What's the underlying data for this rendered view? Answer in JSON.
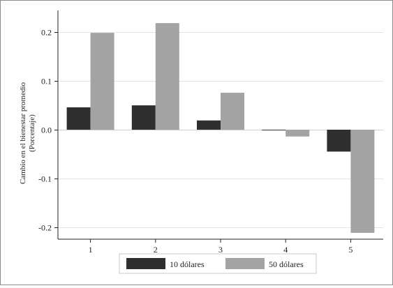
{
  "chart_data": {
    "type": "bar",
    "categories": [
      "1",
      "2",
      "3",
      "4",
      "5"
    ],
    "series": [
      {
        "name": "10 dólares",
        "color": "#2e2e2e",
        "values": [
          0.046,
          0.05,
          0.019,
          -0.001,
          -0.045
        ]
      },
      {
        "name": "50 dólares",
        "color": "#a3a3a3",
        "values": [
          0.199,
          0.219,
          0.076,
          -0.014,
          -0.212
        ]
      }
    ],
    "title": "",
    "xlabel": "",
    "ylabel_lines": [
      "Cambio en el bienestar promedio",
      "(Porcentaje)"
    ],
    "ylim": [
      -0.225,
      0.245
    ],
    "yticks": [
      -0.2,
      -0.1,
      0.0,
      0.1,
      0.2
    ],
    "ytick_labels": [
      "-0.2",
      "-0.1",
      "0.0",
      "0.1",
      "0.2"
    ],
    "grid": "horizontal",
    "legend_position": "bottom"
  }
}
